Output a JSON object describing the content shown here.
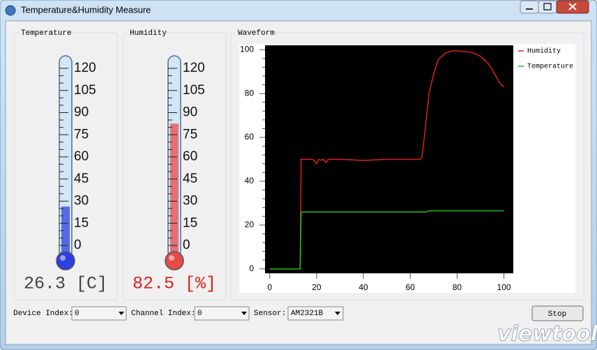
{
  "window": {
    "title": "Temperature&Humidity Measure"
  },
  "gauges": [
    {
      "title": "Temperature",
      "color": "#2f3fe0",
      "reading_color": "#444444",
      "ylim": [
        0,
        120
      ],
      "yticks": [
        0,
        15,
        30,
        45,
        60,
        75,
        90,
        105,
        120
      ],
      "reading": {
        "value": 26.3,
        "label": "26.3 [C]"
      }
    },
    {
      "title": "Humidity",
      "color": "#e84a4a",
      "reading_color": "#e02020",
      "ylim": [
        0,
        120
      ],
      "yticks": [
        0,
        15,
        30,
        45,
        60,
        75,
        90,
        105,
        120
      ],
      "reading": {
        "value": 82.5,
        "label": "82.5 [%]"
      }
    }
  ],
  "chart_data": {
    "type": "line",
    "title": "Waveform",
    "x": [
      0,
      5,
      10,
      13,
      13.4,
      16,
      18,
      19,
      20,
      21,
      22,
      23,
      24,
      25,
      30,
      40,
      50,
      60,
      64,
      65,
      66,
      67,
      68,
      70,
      72,
      75,
      78,
      80,
      85,
      88,
      90,
      93,
      95,
      97,
      98,
      100
    ],
    "series": [
      {
        "name": "Humidity",
        "color": "#e02020",
        "values": [
          0,
          0,
          0,
          0,
          50,
          50,
          50,
          49.5,
          48,
          50,
          49.5,
          50,
          48.5,
          50,
          50,
          49.5,
          50,
          50,
          50,
          51,
          60,
          70,
          80,
          89,
          95.5,
          98.5,
          99.5,
          99.5,
          99,
          98,
          97,
          94,
          91,
          87,
          85,
          83
        ]
      },
      {
        "name": "Temperature",
        "color": "#22bb22",
        "values": [
          0,
          0,
          0,
          0,
          26,
          26,
          26,
          26,
          26,
          26,
          26,
          26,
          26,
          26,
          26,
          26,
          26,
          26,
          26,
          26,
          26,
          26,
          26.5,
          26.5,
          26.5,
          26.5,
          26.5,
          26.5,
          26.5,
          26.5,
          26.5,
          26.5,
          26.5,
          26.5,
          26.5,
          26.5
        ]
      }
    ],
    "xlim": [
      -2,
      104
    ],
    "ylim": [
      -2,
      102
    ],
    "xticks": [
      0,
      20,
      40,
      60,
      80,
      100
    ],
    "yticks": [
      0,
      20,
      40,
      60,
      80,
      100
    ],
    "legend": "upper right"
  },
  "controls": {
    "device_label": "Device Index:",
    "device_value": "0",
    "channel_label": "Channel Index:",
    "channel_value": "0",
    "sensor_label": "Sensor:",
    "sensor_value": "AM2321B",
    "button": "Stop"
  },
  "watermark": "viewtool"
}
